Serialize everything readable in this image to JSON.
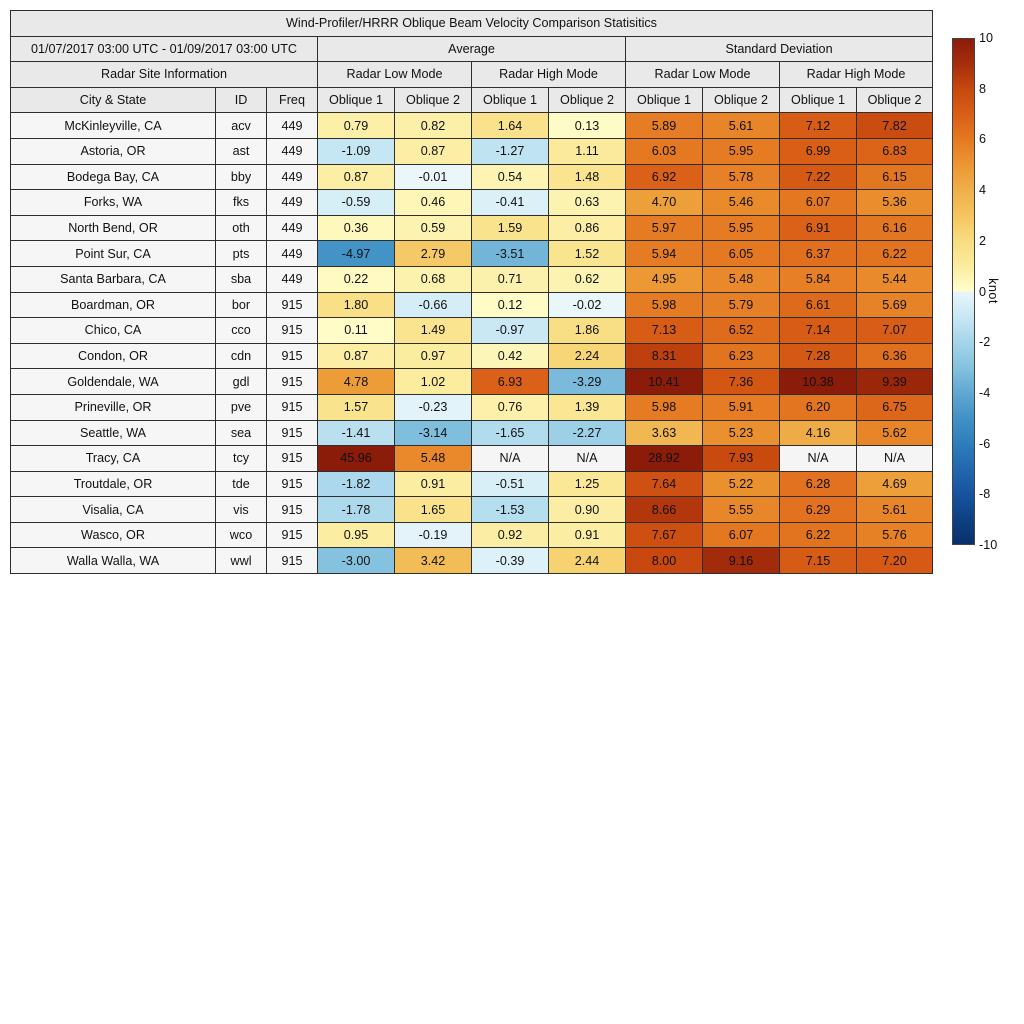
{
  "figure": {
    "title": "Wind-Profiler/HRRR Oblique Beam Velocity Comparison Statisitics",
    "date_range": "01/07/2017 03:00 UTC - 01/09/2017 03:00 UTC",
    "headers": {
      "average": "Average",
      "standard_deviation": "Standard Deviation",
      "radar_site_information": "Radar Site Information",
      "radar_low_mode": "Radar Low Mode",
      "radar_high_mode": "Radar High Mode",
      "city_state": "City & State",
      "id": "ID",
      "freq": "Freq",
      "oblique1": "Oblique 1",
      "oblique2": "Oblique 2"
    }
  },
  "colors": {
    "header_bg": "#e9e9e9",
    "info_cell_bg": "#f6f6f6",
    "na_cell_bg": "#f5f5f5",
    "border": "#2e2e2e",
    "background": "#ffffff"
  },
  "colorbar": {
    "unit_label": "knot",
    "min": -10,
    "max": 10,
    "tick_labels": [
      "10",
      "8",
      "6",
      "4",
      "2",
      "0",
      "-2",
      "-4",
      "-6",
      "-8",
      "-10"
    ],
    "warm_stops": [
      [
        0,
        "#FFFECC"
      ],
      [
        1,
        "#FBEC9F"
      ],
      [
        2,
        "#F8DC80"
      ],
      [
        3,
        "#F4C55F"
      ],
      [
        4,
        "#EFB04A"
      ],
      [
        5,
        "#EC9733"
      ],
      [
        6,
        "#E57A22"
      ],
      [
        7,
        "#D95F16"
      ],
      [
        8,
        "#C8480F"
      ],
      [
        9,
        "#A62E0B"
      ],
      [
        10,
        "#8B1C0A"
      ]
    ],
    "cool_stops": [
      [
        -10,
        "#08306B"
      ],
      [
        -9,
        "#0E4183"
      ],
      [
        -8,
        "#1853A0"
      ],
      [
        -7,
        "#2268AE"
      ],
      [
        -6,
        "#2E7EBC"
      ],
      [
        -5,
        "#4292C6"
      ],
      [
        -4,
        "#61A8D2"
      ],
      [
        -3,
        "#85C2DF"
      ],
      [
        -2,
        "#A5D5EA"
      ],
      [
        -1,
        "#C8E8F4"
      ],
      [
        -0.001,
        "#EAF6FA"
      ]
    ]
  },
  "chart_data": {
    "type": "heatmap",
    "title": "Wind-Profiler/HRRR Oblique Beam Velocity Comparison Statisitics",
    "unit": "knot",
    "color_scale_range": [
      -10,
      10
    ],
    "column_groups": [
      "Average / Radar Low Mode",
      "Average / Radar High Mode",
      "Standard Deviation / Radar Low Mode",
      "Standard Deviation / Radar High Mode"
    ],
    "value_columns": [
      "Avg Low Oblique 1",
      "Avg Low Oblique 2",
      "Avg High Oblique 1",
      "Avg High Oblique 2",
      "SD Low Oblique 1",
      "SD Low Oblique 2",
      "SD High Oblique 1",
      "SD High Oblique 2"
    ],
    "rows": [
      {
        "city": "McKinleyville, CA",
        "id": "acv",
        "freq": "449",
        "values": [
          "0.79",
          "0.82",
          "1.64",
          "0.13",
          "5.89",
          "5.61",
          "7.12",
          "7.82"
        ]
      },
      {
        "city": "Astoria, OR",
        "id": "ast",
        "freq": "449",
        "values": [
          "-1.09",
          "0.87",
          "-1.27",
          "1.11",
          "6.03",
          "5.95",
          "6.99",
          "6.83"
        ]
      },
      {
        "city": "Bodega Bay, CA",
        "id": "bby",
        "freq": "449",
        "values": [
          "0.87",
          "-0.01",
          "0.54",
          "1.48",
          "6.92",
          "5.78",
          "7.22",
          "6.15"
        ]
      },
      {
        "city": "Forks, WA",
        "id": "fks",
        "freq": "449",
        "values": [
          "-0.59",
          "0.46",
          "-0.41",
          "0.63",
          "4.70",
          "5.46",
          "6.07",
          "5.36"
        ]
      },
      {
        "city": "North Bend, OR",
        "id": "oth",
        "freq": "449",
        "values": [
          "0.36",
          "0.59",
          "1.59",
          "0.86",
          "5.97",
          "5.95",
          "6.91",
          "6.16"
        ]
      },
      {
        "city": "Point Sur, CA",
        "id": "pts",
        "freq": "449",
        "values": [
          "-4.97",
          "2.79",
          "-3.51",
          "1.52",
          "5.94",
          "6.05",
          "6.37",
          "6.22"
        ]
      },
      {
        "city": "Santa Barbara, CA",
        "id": "sba",
        "freq": "449",
        "values": [
          "0.22",
          "0.68",
          "0.71",
          "0.62",
          "4.95",
          "5.48",
          "5.84",
          "5.44"
        ]
      },
      {
        "city": "Boardman, OR",
        "id": "bor",
        "freq": "915",
        "values": [
          "1.80",
          "-0.66",
          "0.12",
          "-0.02",
          "5.98",
          "5.79",
          "6.61",
          "5.69"
        ]
      },
      {
        "city": "Chico, CA",
        "id": "cco",
        "freq": "915",
        "values": [
          "0.11",
          "1.49",
          "-0.97",
          "1.86",
          "7.13",
          "6.52",
          "7.14",
          "7.07"
        ]
      },
      {
        "city": "Condon, OR",
        "id": "cdn",
        "freq": "915",
        "values": [
          "0.87",
          "0.97",
          "0.42",
          "2.24",
          "8.31",
          "6.23",
          "7.28",
          "6.36"
        ]
      },
      {
        "city": "Goldendale, WA",
        "id": "gdl",
        "freq": "915",
        "values": [
          "4.78",
          "1.02",
          "6.93",
          "-3.29",
          "10.41",
          "7.36",
          "10.38",
          "9.39"
        ]
      },
      {
        "city": "Prineville, OR",
        "id": "pve",
        "freq": "915",
        "values": [
          "1.57",
          "-0.23",
          "0.76",
          "1.39",
          "5.98",
          "5.91",
          "6.20",
          "6.75"
        ]
      },
      {
        "city": "Seattle, WA",
        "id": "sea",
        "freq": "915",
        "values": [
          "-1.41",
          "-3.14",
          "-1.65",
          "-2.27",
          "3.63",
          "5.23",
          "4.16",
          "5.62"
        ]
      },
      {
        "city": "Tracy, CA",
        "id": "tcy",
        "freq": "915",
        "values": [
          "45.96",
          "5.48",
          "N/A",
          "N/A",
          "28.92",
          "7.93",
          "N/A",
          "N/A"
        ]
      },
      {
        "city": "Troutdale, OR",
        "id": "tde",
        "freq": "915",
        "values": [
          "-1.82",
          "0.91",
          "-0.51",
          "1.25",
          "7.64",
          "5.22",
          "6.28",
          "4.69"
        ]
      },
      {
        "city": "Visalia, CA",
        "id": "vis",
        "freq": "915",
        "values": [
          "-1.78",
          "1.65",
          "-1.53",
          "0.90",
          "8.66",
          "5.55",
          "6.29",
          "5.61"
        ]
      },
      {
        "city": "Wasco, OR",
        "id": "wco",
        "freq": "915",
        "values": [
          "0.95",
          "-0.19",
          "0.92",
          "0.91",
          "7.67",
          "6.07",
          "6.22",
          "5.76"
        ]
      },
      {
        "city": "Walla Walla, WA",
        "id": "wwl",
        "freq": "915",
        "values": [
          "-3.00",
          "3.42",
          "-0.39",
          "2.44",
          "8.00",
          "9.16",
          "7.15",
          "7.20"
        ]
      }
    ]
  }
}
